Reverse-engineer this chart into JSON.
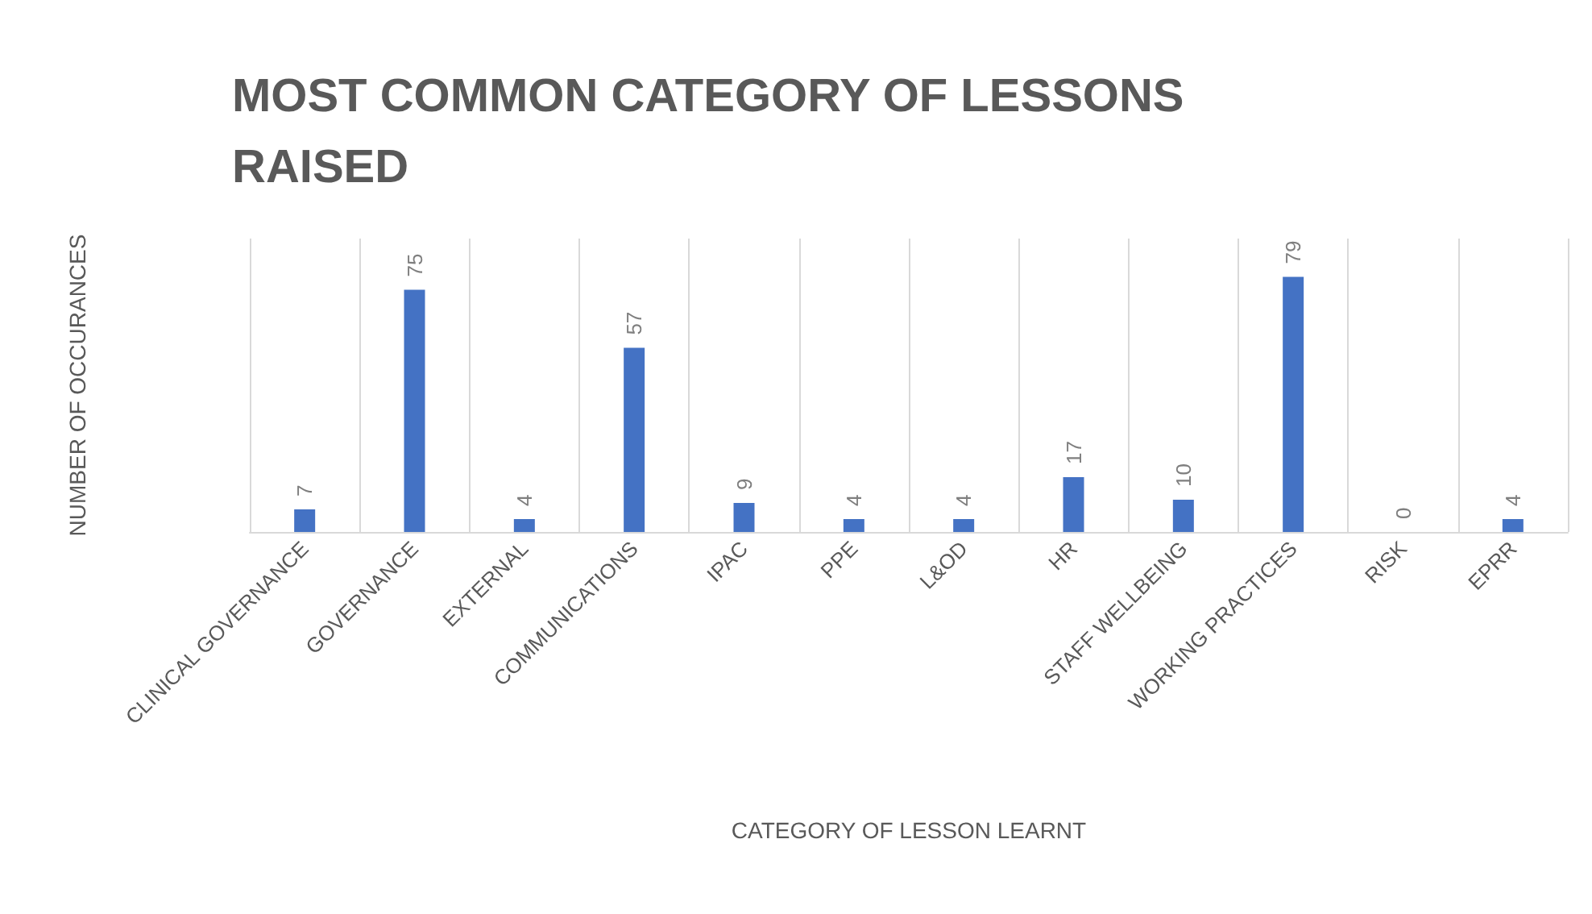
{
  "chart_data": {
    "type": "bar",
    "title": "MOST COMMON CATEGORY OF LESSONS RAISED",
    "xlabel": "CATEGORY OF LESSON LEARNT",
    "ylabel": "NUMBER OF OCCURANCES",
    "categories": [
      "CLINICAL GOVERNANCE",
      "GOVERNANCE",
      "EXTERNAL",
      "COMMUNICATIONS",
      "IPAC",
      "PPE",
      "L&OD",
      "HR",
      "STAFF WELLBEING",
      "WORKING PRACTICES",
      "RISK",
      "EPRR"
    ],
    "values": [
      7,
      75,
      4,
      57,
      9,
      4,
      4,
      17,
      10,
      79,
      0,
      4
    ],
    "color": "#4472c4",
    "data_labels": true,
    "grid": "x"
  }
}
